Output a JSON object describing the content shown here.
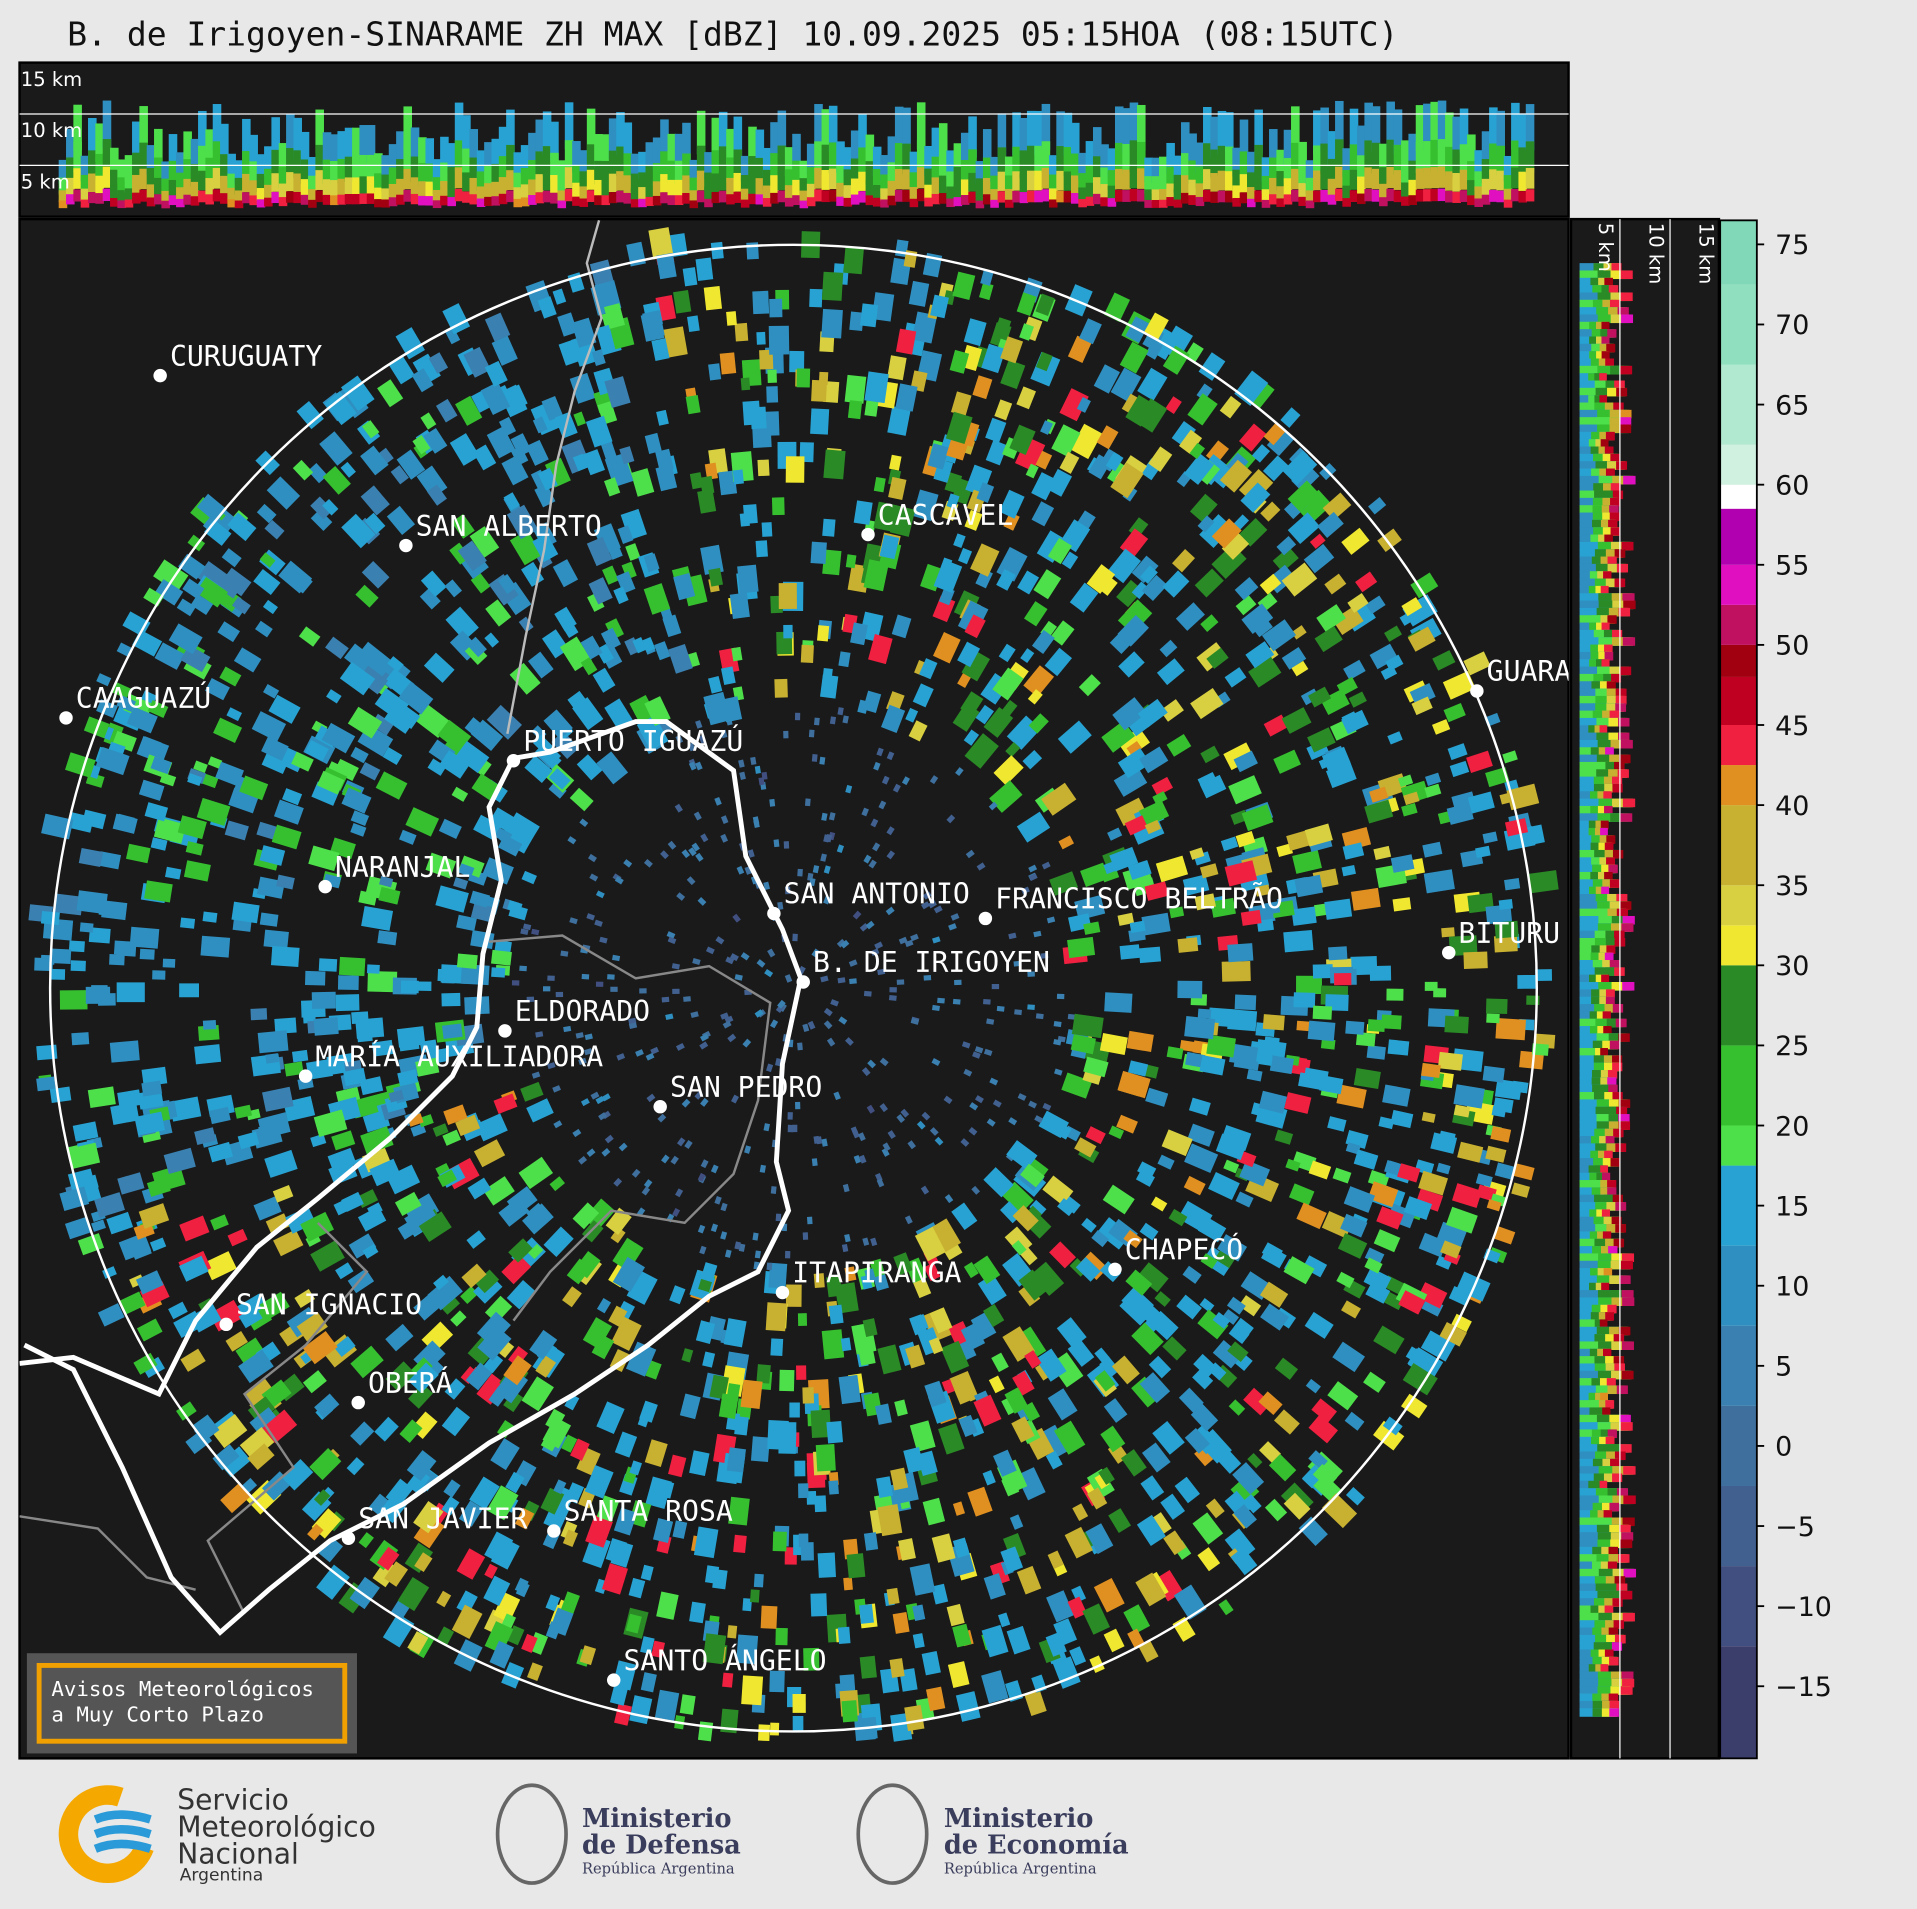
{
  "title": "B. de Irigoyen-SINARAME ZH MAX [dBZ] 10.09.2025 05:15HOA (08:15UTC)",
  "top_panel": {
    "height_labels": [
      "15 km",
      "10 km",
      "5 km"
    ]
  },
  "side_panel": {
    "height_labels": [
      "5 km",
      "10 km",
      "15 km"
    ]
  },
  "cities": [
    "CURUGUATY",
    "SAN ALBERTO",
    "CASCAVEL",
    "CAAGUAZÚ",
    "PUERTO IGUAZÚ",
    "GUARA",
    "NARANJAL",
    "SAN ANTONIO",
    "FRANCISCO BELTRÃO",
    "BITURU",
    "B. DE IRIGOYEN",
    "ELDORADO",
    "MARÍA AUXILIADORA",
    "SAN PEDRO",
    "CHAPECÓ",
    "ITAPIRANGA",
    "SAN IGNACIO",
    "OBERÁ",
    "SAN JAVIER",
    "SANTA ROSA",
    "SANTO ÁNGELO"
  ],
  "colorbar": {
    "lim": [
      -19.5,
      76.5
    ],
    "ticks": [
      75,
      70,
      65,
      60,
      55,
      50,
      45,
      40,
      35,
      30,
      25,
      20,
      15,
      10,
      5,
      0,
      {
        "value": -5,
        "label": "−5"
      },
      {
        "value": -10,
        "label": "−10"
      },
      {
        "value": -15,
        "label": "−15"
      }
    ],
    "bands": [
      {
        "from": -19.5,
        "color": "#3b3d6b"
      },
      {
        "from": -12.5,
        "color": "#404f80"
      },
      {
        "from": -7.5,
        "color": "#41608f"
      },
      {
        "from": -2.5,
        "color": "#3f6f9d"
      },
      {
        "from": 2.5,
        "color": "#3a80b0"
      },
      {
        "from": 7.5,
        "color": "#2f8fc0"
      },
      {
        "from": 12.5,
        "color": "#28a2d2"
      },
      {
        "from": 17.5,
        "color": "#4ee04a"
      },
      {
        "from": 20,
        "color": "#36c030"
      },
      {
        "from": 25,
        "color": "#2a8a25"
      },
      {
        "from": 30,
        "color": "#f0e830"
      },
      {
        "from": 32.5,
        "color": "#d8d040"
      },
      {
        "from": 35,
        "color": "#c8b030"
      },
      {
        "from": 40,
        "color": "#e09020"
      },
      {
        "from": 42.5,
        "color": "#f02040"
      },
      {
        "from": 45,
        "color": "#c00020"
      },
      {
        "from": 48,
        "color": "#a00010"
      },
      {
        "from": 50,
        "color": "#c01060"
      },
      {
        "from": 52.5,
        "color": "#e010c0"
      },
      {
        "from": 55,
        "color": "#b000b0"
      },
      {
        "from": 58.5,
        "color": "#ffffff"
      },
      {
        "from": 60,
        "color": "#d0f0e0"
      },
      {
        "from": 62.5,
        "color": "#b0e8d0"
      },
      {
        "from": 67.5,
        "color": "#90e0c0"
      },
      {
        "from": 72.5,
        "color": "#80d8b8"
      }
    ]
  },
  "notice": [
    "Avisos Meteorológicos",
    "a Muy Corto Plazo"
  ],
  "logos": {
    "smn": [
      "Servicio",
      "Meteorológico",
      "Nacional",
      "Argentina"
    ],
    "defensa": {
      "name": [
        "Ministerio",
        "de Defensa"
      ],
      "country": "República Argentina"
    },
    "economia": {
      "name": [
        "Ministerio",
        "de Economía"
      ],
      "country": "República Argentina"
    }
  }
}
